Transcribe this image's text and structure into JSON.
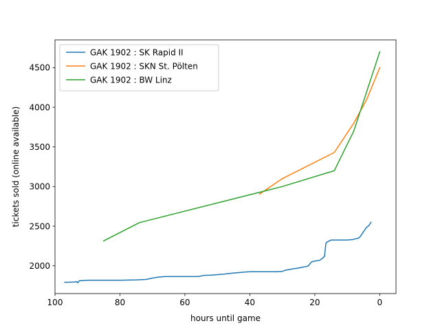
{
  "chart_data": {
    "type": "line",
    "title": "",
    "xlabel": "hours until game",
    "ylabel": "tickets sold (online available)",
    "xlim": [
      100,
      -5
    ],
    "ylim": [
      1650,
      4850
    ],
    "xticks": [
      100,
      80,
      60,
      40,
      20,
      0
    ],
    "yticks": [
      2000,
      2500,
      3000,
      3500,
      4000,
      4500
    ],
    "legend_position": "upper-left",
    "series": [
      {
        "name": "GAK 1902 : SK Rapid II",
        "color": "#1f77b4",
        "x": [
          97,
          94,
          93.3,
          93,
          92.5,
          90,
          80,
          75,
          72,
          70,
          68,
          66,
          60,
          56,
          54,
          52,
          50,
          48,
          46,
          44,
          42,
          40,
          38,
          36,
          34,
          32,
          30,
          29,
          27,
          25,
          23.5,
          22.5,
          22,
          21,
          20,
          18.5,
          17.5,
          17,
          16.6,
          16.4,
          16,
          15.5,
          15,
          14,
          12,
          10,
          9,
          8.5,
          7.5,
          6.5,
          6,
          5.5,
          5,
          4.5,
          4,
          3.5,
          3,
          2.7
        ],
        "y": [
          1792,
          1795,
          1802,
          1785,
          1812,
          1818,
          1818,
          1822,
          1828,
          1845,
          1858,
          1865,
          1865,
          1865,
          1880,
          1882,
          1888,
          1895,
          1905,
          1912,
          1920,
          1925,
          1925,
          1925,
          1925,
          1925,
          1930,
          1945,
          1960,
          1972,
          1985,
          1992,
          2000,
          2050,
          2060,
          2070,
          2100,
          2120,
          2280,
          2295,
          2305,
          2315,
          2325,
          2325,
          2325,
          2325,
          2330,
          2330,
          2340,
          2350,
          2370,
          2400,
          2430,
          2460,
          2490,
          2500,
          2530,
          2550
        ]
      },
      {
        "name": "GAK 1902 : SKN St. Pölten",
        "color": "#ff7f0e",
        "x": [
          37,
          30,
          14,
          8,
          4,
          0
        ],
        "y": [
          2905,
          3100,
          3430,
          3800,
          4100,
          4500
        ]
      },
      {
        "name": "GAK 1902 : BW Linz",
        "color": "#2ca02c",
        "x": [
          85,
          74,
          30,
          14,
          8,
          0
        ],
        "y": [
          2315,
          2545,
          3000,
          3200,
          3700,
          4700
        ]
      }
    ]
  }
}
